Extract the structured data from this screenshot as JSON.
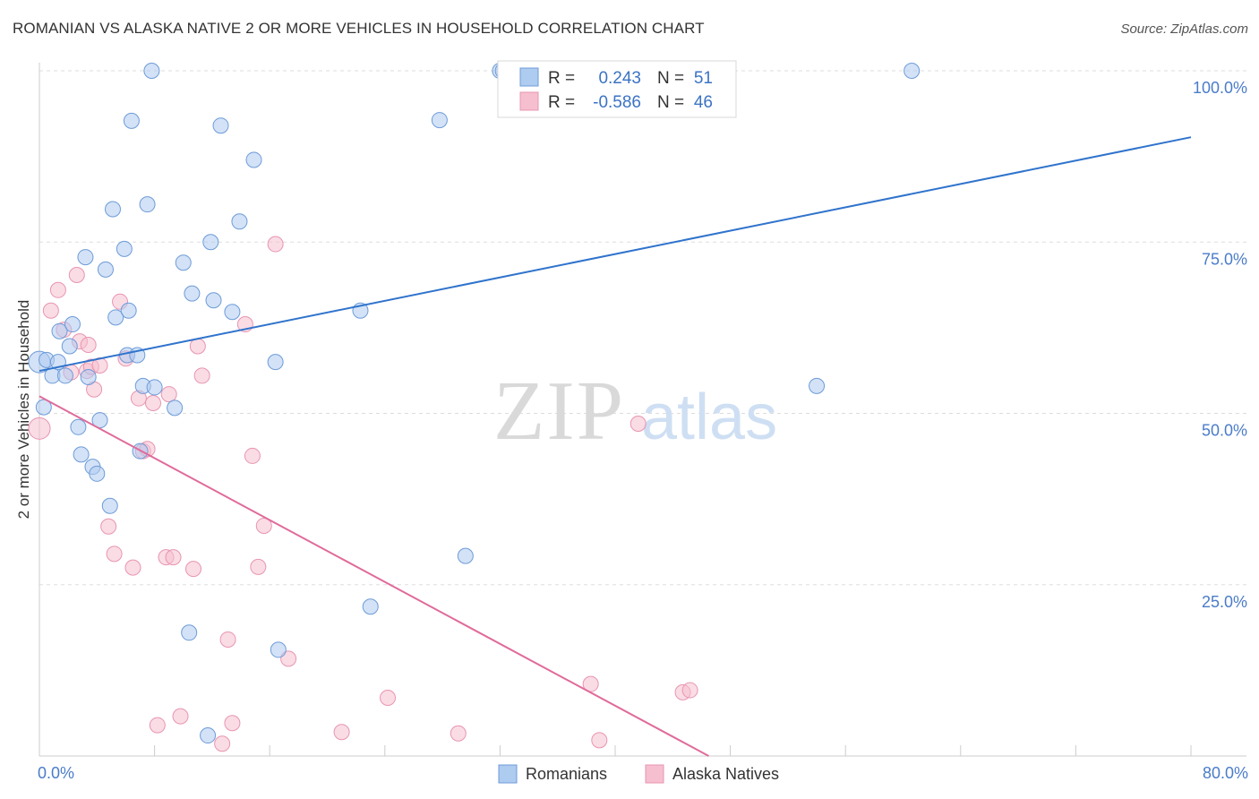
{
  "header": {
    "title": "ROMANIAN VS ALASKA NATIVE 2 OR MORE VEHICLES IN HOUSEHOLD CORRELATION CHART",
    "source": "Source: ZipAtlas.com"
  },
  "watermark": {
    "zip": "ZIP",
    "atlas": "atlas"
  },
  "legend_top": {
    "rows": [
      {
        "r_label": "R =",
        "r_value": "0.243",
        "n_label": "N =",
        "n_value": "51"
      },
      {
        "r_label": "R =",
        "r_value": "-0.586",
        "n_label": "N =",
        "n_value": "46"
      }
    ]
  },
  "colors": {
    "blue_fill": "#aecbf0",
    "blue_stroke": "#6d9bd8",
    "blue_line": "#2f73cc",
    "pink_fill": "#f6bfd0",
    "pink_stroke": "#e895b0",
    "pink_line": "#e06b9a",
    "grid": "#dddddd",
    "axis": "#cccccc",
    "tick_text": "#4a7cc9"
  },
  "chart_data": {
    "type": "scatter",
    "title": "ROMANIAN VS ALASKA NATIVE 2 OR MORE VEHICLES IN HOUSEHOLD CORRELATION CHART",
    "xlabel": "",
    "ylabel": "2 or more Vehicles in Household",
    "xlim": [
      0,
      80
    ],
    "ylim": [
      0,
      101
    ],
    "x_tick_labels": [
      "0.0%",
      "80.0%"
    ],
    "y_ticks": [
      25,
      50,
      75,
      100
    ],
    "y_tick_labels": [
      "25.0%",
      "50.0%",
      "75.0%",
      "100.0%"
    ],
    "legend_position": "bottom",
    "series": [
      {
        "name": "Romanians",
        "color": "blue",
        "r": 0.243,
        "n": 51,
        "trend": {
          "x0": 0,
          "y0": 56.2,
          "x1": 80,
          "y1": 90.3
        },
        "points": [
          [
            0,
            57.5
          ],
          [
            0.3,
            50.9
          ],
          [
            0.5,
            57.8
          ],
          [
            0.9,
            55.5
          ],
          [
            1.3,
            57.5
          ],
          [
            1.4,
            62.0
          ],
          [
            1.8,
            55.5
          ],
          [
            2.1,
            59.8
          ],
          [
            2.3,
            63.0
          ],
          [
            2.7,
            48.0
          ],
          [
            2.9,
            44.0
          ],
          [
            3.2,
            72.8
          ],
          [
            3.4,
            55.3
          ],
          [
            3.7,
            42.2
          ],
          [
            4.0,
            41.2
          ],
          [
            4.2,
            49.0
          ],
          [
            4.6,
            71.0
          ],
          [
            4.9,
            36.5
          ],
          [
            5.1,
            79.8
          ],
          [
            5.3,
            64.0
          ],
          [
            5.9,
            74.0
          ],
          [
            6.1,
            58.5
          ],
          [
            6.2,
            65.0
          ],
          [
            6.4,
            92.7
          ],
          [
            6.8,
            58.5
          ],
          [
            7.0,
            44.5
          ],
          [
            7.2,
            54.0
          ],
          [
            7.5,
            80.5
          ],
          [
            7.8,
            100.0
          ],
          [
            8.0,
            53.8
          ],
          [
            9.4,
            50.8
          ],
          [
            10.0,
            72.0
          ],
          [
            10.4,
            18.0
          ],
          [
            10.6,
            67.5
          ],
          [
            11.7,
            3.0
          ],
          [
            11.9,
            75.0
          ],
          [
            12.1,
            66.5
          ],
          [
            12.6,
            92.0
          ],
          [
            13.4,
            64.8
          ],
          [
            13.9,
            78.0
          ],
          [
            14.9,
            87.0
          ],
          [
            16.4,
            57.5
          ],
          [
            16.6,
            15.5
          ],
          [
            22.3,
            65.0
          ],
          [
            23.0,
            21.8
          ],
          [
            27.8,
            92.8
          ],
          [
            29.6,
            29.2
          ],
          [
            32.0,
            100.0
          ],
          [
            32.2,
            100.0
          ],
          [
            54.0,
            54.0
          ],
          [
            60.6,
            100.0
          ]
        ]
      },
      {
        "name": "Alaska Natives",
        "color": "pink",
        "r": -0.586,
        "n": 46,
        "trend": {
          "x0": 0,
          "y0": 52.5,
          "x1": 46.5,
          "y1": 0
        },
        "points": [
          [
            0,
            47.8
          ],
          [
            0.8,
            65.0
          ],
          [
            1.3,
            68.0
          ],
          [
            1.7,
            62.2
          ],
          [
            2.2,
            56.0
          ],
          [
            2.6,
            70.2
          ],
          [
            2.8,
            60.5
          ],
          [
            3.3,
            56.2
          ],
          [
            3.4,
            60.0
          ],
          [
            3.6,
            56.8
          ],
          [
            3.8,
            53.5
          ],
          [
            4.2,
            57.0
          ],
          [
            4.8,
            33.5
          ],
          [
            5.2,
            29.5
          ],
          [
            5.6,
            66.3
          ],
          [
            6.0,
            58.0
          ],
          [
            6.5,
            27.5
          ],
          [
            6.9,
            52.2
          ],
          [
            7.2,
            44.5
          ],
          [
            7.5,
            44.8
          ],
          [
            7.9,
            51.5
          ],
          [
            8.2,
            4.5
          ],
          [
            8.8,
            29.0
          ],
          [
            9.0,
            52.8
          ],
          [
            9.3,
            29.0
          ],
          [
            9.8,
            5.8
          ],
          [
            10.7,
            27.3
          ],
          [
            11.0,
            59.8
          ],
          [
            11.3,
            55.5
          ],
          [
            12.7,
            1.8
          ],
          [
            13.1,
            17.0
          ],
          [
            13.4,
            4.8
          ],
          [
            14.3,
            63.0
          ],
          [
            14.8,
            43.8
          ],
          [
            15.2,
            27.6
          ],
          [
            15.6,
            33.6
          ],
          [
            16.4,
            74.7
          ],
          [
            17.3,
            14.2
          ],
          [
            21.0,
            3.5
          ],
          [
            24.2,
            8.5
          ],
          [
            29.1,
            3.3
          ],
          [
            38.3,
            10.5
          ],
          [
            38.9,
            2.3
          ],
          [
            41.6,
            48.5
          ],
          [
            44.7,
            9.3
          ],
          [
            45.2,
            9.6
          ]
        ]
      }
    ]
  }
}
